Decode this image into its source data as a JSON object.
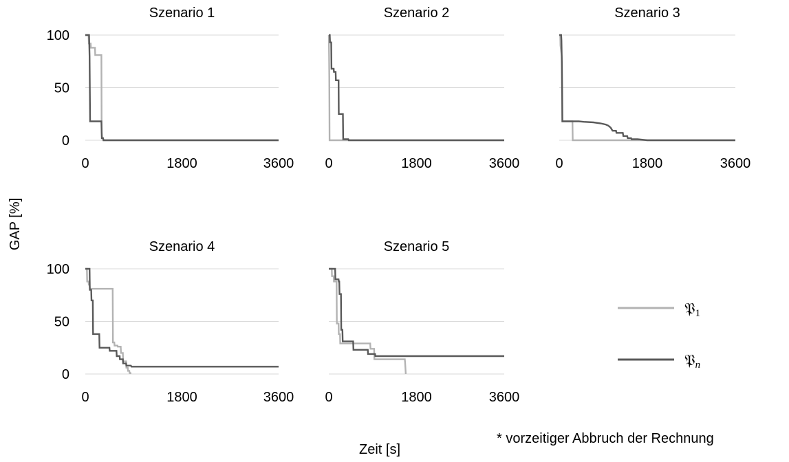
{
  "figure": {
    "ylabel": "GAP [%]",
    "xlabel": "Zeit [s]",
    "footnote": "* vorzeitiger Abbruch der Rechnung"
  },
  "legend": [
    {
      "symbol": "𝔓",
      "sub": "1",
      "color": "#b3b3b3"
    },
    {
      "symbol": "𝔓",
      "sub": "n",
      "color": "#595959"
    }
  ],
  "colors": {
    "p1": "#b3b3b3",
    "pn": "#595959",
    "grid": "#d9d9d9"
  },
  "chart_data": [
    {
      "type": "line",
      "title": "Szenario 1",
      "xlim": [
        0,
        3600
      ],
      "ylim": [
        0,
        100
      ],
      "xticks": [
        0,
        1800,
        3600
      ],
      "yticks": [
        0,
        50,
        100
      ],
      "grid": "horizontal",
      "series": [
        {
          "name": "𝔓1",
          "points": [
            [
              0,
              100
            ],
            [
              60,
              100
            ],
            [
              65,
              92
            ],
            [
              100,
              92
            ],
            [
              105,
              88
            ],
            [
              180,
              88
            ],
            [
              185,
              81
            ],
            [
              300,
              81
            ],
            [
              305,
              2
            ],
            [
              330,
              2
            ],
            [
              335,
              0
            ],
            [
              3600,
              0
            ]
          ]
        },
        {
          "name": "𝔓n",
          "points": [
            [
              0,
              100
            ],
            [
              70,
              100
            ],
            [
              80,
              80
            ],
            [
              90,
              18
            ],
            [
              300,
              18
            ],
            [
              305,
              8
            ],
            [
              310,
              2
            ],
            [
              330,
              2
            ],
            [
              340,
              0
            ],
            [
              3600,
              0
            ]
          ]
        }
      ]
    },
    {
      "type": "line",
      "title": "Szenario 2",
      "xlim": [
        0,
        3600
      ],
      "ylim": [
        0,
        100
      ],
      "xticks": [
        0,
        1800,
        3600
      ],
      "yticks": [
        0,
        50,
        100
      ],
      "grid": "horizontal",
      "series": [
        {
          "name": "𝔓1",
          "points": [
            [
              0,
              100
            ],
            [
              5,
              80
            ],
            [
              10,
              60
            ],
            [
              15,
              0
            ],
            [
              3600,
              0
            ]
          ]
        },
        {
          "name": "𝔓n",
          "points": [
            [
              0,
              100
            ],
            [
              20,
              100
            ],
            [
              25,
              93
            ],
            [
              50,
              93
            ],
            [
              55,
              68
            ],
            [
              100,
              68
            ],
            [
              105,
              65
            ],
            [
              140,
              65
            ],
            [
              145,
              57
            ],
            [
              200,
              57
            ],
            [
              205,
              25
            ],
            [
              290,
              25
            ],
            [
              295,
              1
            ],
            [
              400,
              1
            ],
            [
              410,
              0
            ],
            [
              3600,
              0
            ]
          ]
        }
      ]
    },
    {
      "type": "line",
      "title": "Szenario 3",
      "xlim": [
        0,
        3600
      ],
      "ylim": [
        0,
        100
      ],
      "xticks": [
        0,
        1800,
        3600
      ],
      "yticks": [
        0,
        50,
        100
      ],
      "grid": "horizontal",
      "series": [
        {
          "name": "𝔓1",
          "points": [
            [
              0,
              100
            ],
            [
              20,
              100
            ],
            [
              25,
              90
            ],
            [
              50,
              80
            ],
            [
              60,
              18
            ],
            [
              270,
              18
            ],
            [
              275,
              0
            ],
            [
              3600,
              0
            ]
          ]
        },
        {
          "name": "𝔓n",
          "points": [
            [
              0,
              100
            ],
            [
              40,
              100
            ],
            [
              45,
              95
            ],
            [
              55,
              70
            ],
            [
              65,
              18
            ],
            [
              400,
              18
            ],
            [
              500,
              17.5
            ],
            [
              700,
              17
            ],
            [
              850,
              16
            ],
            [
              950,
              15
            ],
            [
              1000,
              14
            ],
            [
              1050,
              12
            ],
            [
              1090,
              9
            ],
            [
              1160,
              9
            ],
            [
              1170,
              7
            ],
            [
              1300,
              7
            ],
            [
              1310,
              4
            ],
            [
              1390,
              4
            ],
            [
              1400,
              2
            ],
            [
              1470,
              2
            ],
            [
              1480,
              1
            ],
            [
              1600,
              1
            ],
            [
              1700,
              0.5
            ],
            [
              1800,
              0
            ],
            [
              3600,
              0
            ]
          ]
        }
      ]
    },
    {
      "type": "line",
      "title": "Szenario 4",
      "xlim": [
        0,
        3600
      ],
      "ylim": [
        0,
        100
      ],
      "xticks": [
        0,
        1800,
        3600
      ],
      "yticks": [
        0,
        50,
        100
      ],
      "grid": "horizontal",
      "series": [
        {
          "name": "𝔓1",
          "points": [
            [
              0,
              100
            ],
            [
              30,
              100
            ],
            [
              35,
              88
            ],
            [
              60,
              88
            ],
            [
              65,
              85
            ],
            [
              80,
              85
            ],
            [
              85,
              81
            ],
            [
              510,
              81
            ],
            [
              515,
              30
            ],
            [
              540,
              30
            ],
            [
              545,
              27
            ],
            [
              600,
              27
            ],
            [
              605,
              26
            ],
            [
              660,
              26
            ],
            [
              665,
              20
            ],
            [
              700,
              20
            ],
            [
              705,
              12
            ],
            [
              760,
              12
            ],
            [
              765,
              6
            ],
            [
              790,
              6
            ],
            [
              795,
              3
            ],
            [
              820,
              3
            ],
            [
              825,
              1
            ],
            [
              840,
              1
            ],
            [
              845,
              0
            ]
          ]
        },
        {
          "name": "𝔓n",
          "points": [
            [
              0,
              100
            ],
            [
              80,
              100
            ],
            [
              85,
              80
            ],
            [
              110,
              80
            ],
            [
              115,
              70
            ],
            [
              140,
              70
            ],
            [
              145,
              38
            ],
            [
              260,
              38
            ],
            [
              265,
              25
            ],
            [
              450,
              25
            ],
            [
              455,
              22
            ],
            [
              580,
              22
            ],
            [
              585,
              17
            ],
            [
              640,
              17
            ],
            [
              645,
              14
            ],
            [
              700,
              14
            ],
            [
              705,
              10
            ],
            [
              760,
              10
            ],
            [
              765,
              8
            ],
            [
              850,
              8
            ],
            [
              860,
              7
            ],
            [
              3600,
              7
            ]
          ]
        }
      ]
    },
    {
      "type": "line",
      "title": "Szenario 5",
      "xlim": [
        0,
        3600
      ],
      "ylim": [
        0,
        100
      ],
      "xticks": [
        0,
        1800,
        3600
      ],
      "yticks": [
        0,
        50,
        100
      ],
      "grid": "horizontal",
      "series": [
        {
          "name": "𝔓1",
          "points": [
            [
              0,
              100
            ],
            [
              60,
              100
            ],
            [
              65,
              93
            ],
            [
              100,
              93
            ],
            [
              105,
              88
            ],
            [
              160,
              88
            ],
            [
              165,
              48
            ],
            [
              200,
              48
            ],
            [
              205,
              38
            ],
            [
              230,
              38
            ],
            [
              235,
              29
            ],
            [
              850,
              29
            ],
            [
              855,
              24
            ],
            [
              930,
              24
            ],
            [
              935,
              14
            ],
            [
              1560,
              14
            ],
            [
              1565,
              11
            ],
            [
              1580,
              0
            ]
          ]
        },
        {
          "name": "𝔓n",
          "points": [
            [
              0,
              100
            ],
            [
              130,
              100
            ],
            [
              135,
              90
            ],
            [
              200,
              90
            ],
            [
              205,
              88
            ],
            [
              215,
              88
            ],
            [
              220,
              76
            ],
            [
              250,
              76
            ],
            [
              255,
              42
            ],
            [
              280,
              42
            ],
            [
              285,
              31
            ],
            [
              500,
              31
            ],
            [
              505,
              23
            ],
            [
              800,
              23
            ],
            [
              805,
              19
            ],
            [
              950,
              19
            ],
            [
              955,
              17
            ],
            [
              3600,
              17
            ]
          ]
        }
      ]
    }
  ]
}
